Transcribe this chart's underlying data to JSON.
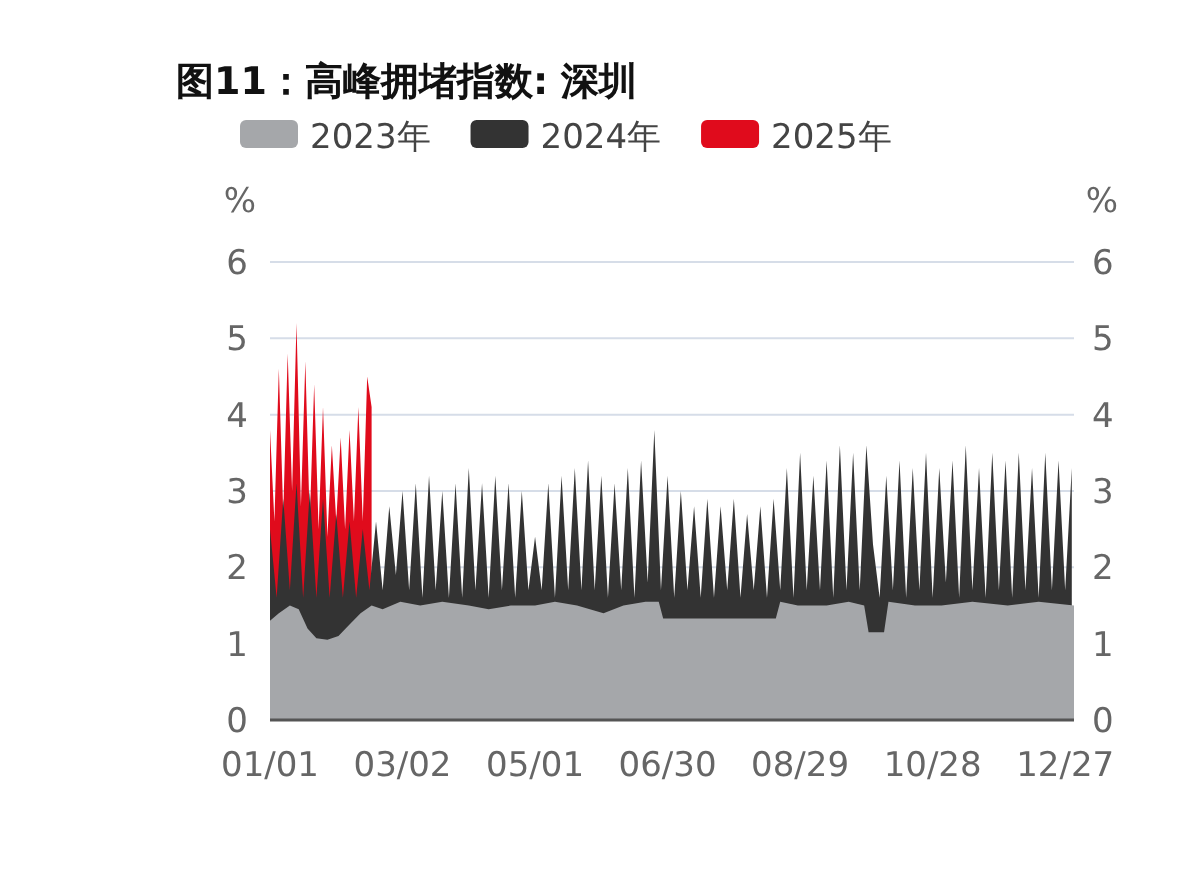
{
  "chart_data": {
    "type": "area",
    "title": "图11：高峰拥堵指数: 深圳",
    "ylabel": "%",
    "y2label": "%",
    "legend": "top",
    "grid": "y",
    "xlim": [
      "--01-01",
      "--12-31"
    ],
    "xticks": [
      {
        "value": "--01-01",
        "label": "01/01"
      },
      {
        "value": "--03-02",
        "label": "03/02"
      },
      {
        "value": "--05-01",
        "label": "05/01"
      },
      {
        "value": "--06-30",
        "label": "06/30"
      },
      {
        "value": "--08-29",
        "label": "08/29"
      },
      {
        "value": "--10-28",
        "label": "10/28"
      },
      {
        "value": "--12-27",
        "label": "12/27"
      }
    ],
    "ylim": [
      0,
      6
    ],
    "yticks": [
      0,
      1,
      2,
      3,
      4,
      5,
      6
    ],
    "y2lim": [
      0,
      6
    ],
    "y2ticks": [
      0,
      1,
      2,
      3,
      4,
      5,
      6
    ],
    "series": [
      {
        "name": "2023年",
        "color": "#a5a7aa",
        "x": [
          "--01-01",
          "--01-05",
          "--01-10",
          "--01-14",
          "--01-18",
          "--01-22",
          "--01-27",
          "--02-01",
          "--02-06",
          "--02-11",
          "--02-16",
          "--02-21",
          "--03-01",
          "--03-10",
          "--03-20",
          "--04-01",
          "--04-10",
          "--04-20",
          "--05-01",
          "--05-10",
          "--05-20",
          "--06-01",
          "--06-10",
          "--06-20",
          "--06-26",
          "--06-28",
          "--08-18",
          "--08-20",
          "--08-28",
          "--09-10",
          "--09-20",
          "--09-27",
          "--09-29",
          "--10-06",
          "--10-08",
          "--10-20",
          "--11-01",
          "--11-15",
          "--12-01",
          "--12-15",
          "--12-31"
        ],
        "values": [
          1.3,
          1.4,
          1.5,
          1.45,
          1.2,
          1.07,
          1.05,
          1.1,
          1.25,
          1.4,
          1.5,
          1.45,
          1.55,
          1.5,
          1.55,
          1.5,
          1.45,
          1.5,
          1.5,
          1.55,
          1.5,
          1.4,
          1.5,
          1.55,
          1.55,
          1.33,
          1.33,
          1.55,
          1.5,
          1.5,
          1.55,
          1.5,
          1.15,
          1.15,
          1.55,
          1.5,
          1.5,
          1.55,
          1.5,
          1.55,
          1.5
        ]
      },
      {
        "name": "2024年",
        "color": "#333333",
        "x": [
          "--01-01",
          "--01-04",
          "--01-07",
          "--01-10",
          "--01-13",
          "--01-16",
          "--01-19",
          "--01-22",
          "--01-25",
          "--01-28",
          "--01-31",
          "--02-03",
          "--02-06",
          "--02-09",
          "--02-12",
          "--02-15",
          "--02-18",
          "--02-21",
          "--02-24",
          "--02-27",
          "--03-02",
          "--03-05",
          "--03-08",
          "--03-11",
          "--03-14",
          "--03-17",
          "--03-20",
          "--03-23",
          "--03-26",
          "--03-29",
          "--04-01",
          "--04-04",
          "--04-07",
          "--04-10",
          "--04-13",
          "--04-16",
          "--04-19",
          "--04-22",
          "--04-25",
          "--04-28",
          "--05-01",
          "--05-04",
          "--05-07",
          "--05-10",
          "--05-13",
          "--05-16",
          "--05-19",
          "--05-22",
          "--05-25",
          "--05-28",
          "--05-31",
          "--06-03",
          "--06-06",
          "--06-09",
          "--06-12",
          "--06-15",
          "--06-18",
          "--06-21",
          "--06-24",
          "--06-27",
          "--06-30",
          "--07-03",
          "--07-06",
          "--07-09",
          "--07-12",
          "--07-15",
          "--07-18",
          "--07-21",
          "--07-24",
          "--07-27",
          "--07-30",
          "--08-02",
          "--08-05",
          "--08-08",
          "--08-11",
          "--08-14",
          "--08-17",
          "--08-20",
          "--08-23",
          "--08-26",
          "--08-29",
          "--09-01",
          "--09-04",
          "--09-07",
          "--09-10",
          "--09-13",
          "--09-16",
          "--09-19",
          "--09-22",
          "--09-25",
          "--09-28",
          "--10-01",
          "--10-04",
          "--10-07",
          "--10-10",
          "--10-13",
          "--10-16",
          "--10-19",
          "--10-22",
          "--10-25",
          "--10-28",
          "--10-31",
          "--11-03",
          "--11-06",
          "--11-09",
          "--11-12",
          "--11-15",
          "--11-18",
          "--11-21",
          "--11-24",
          "--11-27",
          "--11-30",
          "--12-03",
          "--12-06",
          "--12-09",
          "--12-12",
          "--12-15",
          "--12-18",
          "--12-21",
          "--12-24",
          "--12-27",
          "--12-30"
        ],
        "values": [
          2.5,
          1.6,
          2.9,
          1.7,
          3.1,
          1.6,
          3.0,
          1.6,
          2.9,
          1.6,
          2.7,
          1.6,
          2.6,
          1.6,
          2.5,
          1.7,
          2.6,
          1.7,
          2.8,
          1.9,
          3.0,
          1.7,
          3.1,
          1.6,
          3.2,
          1.7,
          3.0,
          1.6,
          3.1,
          1.6,
          3.3,
          1.7,
          3.1,
          1.6,
          3.2,
          1.7,
          3.1,
          1.6,
          3.0,
          1.7,
          2.4,
          1.7,
          3.1,
          1.6,
          3.2,
          1.7,
          3.3,
          1.7,
          3.4,
          1.7,
          3.2,
          1.6,
          3.1,
          1.7,
          3.3,
          1.6,
          3.4,
          1.8,
          3.8,
          1.7,
          3.2,
          1.6,
          3.0,
          1.7,
          2.8,
          1.6,
          2.9,
          1.6,
          2.8,
          1.7,
          2.9,
          1.6,
          2.7,
          1.7,
          2.8,
          1.6,
          2.9,
          1.7,
          3.3,
          1.6,
          3.5,
          1.7,
          3.2,
          1.7,
          3.4,
          1.6,
          3.6,
          1.7,
          3.5,
          1.7,
          3.6,
          2.3,
          1.6,
          3.2,
          1.7,
          3.4,
          1.6,
          3.3,
          1.7,
          3.5,
          1.6,
          3.3,
          1.8,
          3.4,
          1.6,
          3.6,
          1.7,
          3.3,
          1.6,
          3.5,
          1.7,
          3.4,
          1.6,
          3.5,
          1.7,
          3.3,
          1.6,
          3.5,
          1.7,
          3.4,
          1.7,
          3.3
        ]
      },
      {
        "name": "2025年",
        "color": "#e00b1c",
        "x": [
          "--01-01",
          "--01-03",
          "--01-05",
          "--01-07",
          "--01-09",
          "--01-11",
          "--01-13",
          "--01-15",
          "--01-17",
          "--01-19",
          "--01-21",
          "--01-23",
          "--01-25",
          "--01-27",
          "--01-29",
          "--01-31",
          "--02-02",
          "--02-04",
          "--02-06",
          "--02-08",
          "--02-10",
          "--02-12",
          "--02-14",
          "--02-16"
        ],
        "values": [
          3.8,
          2.6,
          4.6,
          2.7,
          4.8,
          3.0,
          5.2,
          2.8,
          4.7,
          2.6,
          4.4,
          2.5,
          4.1,
          2.4,
          3.6,
          2.6,
          3.7,
          2.5,
          3.8,
          2.6,
          4.1,
          2.6,
          4.5,
          4.1
        ]
      }
    ]
  }
}
